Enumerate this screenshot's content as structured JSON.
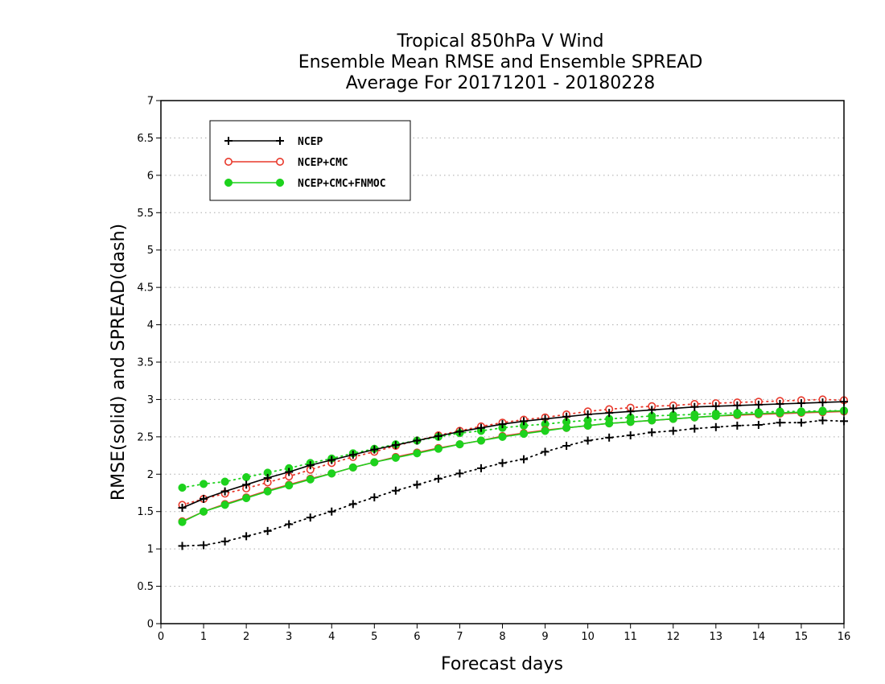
{
  "chart_data": {
    "type": "line",
    "title": [
      "Tropical 850hPa V Wind",
      "Ensemble Mean RMSE and Ensemble SPREAD",
      "Average For 20171201 - 20180228"
    ],
    "xlabel": "Forecast days",
    "ylabel": "RMSE(solid) and SPREAD(dash)",
    "xlim": [
      0,
      16
    ],
    "ylim": [
      0,
      7
    ],
    "xticks": [
      "0",
      "1",
      "2",
      "3",
      "4",
      "5",
      "6",
      "7",
      "8",
      "9",
      "10",
      "11",
      "12",
      "13",
      "14",
      "15",
      "16"
    ],
    "yticks": [
      "0",
      "0.5",
      "1",
      "1.5",
      "2",
      "2.5",
      "3",
      "3.5",
      "4",
      "4.5",
      "5",
      "5.5",
      "6",
      "6.5",
      "7"
    ],
    "grid": "horizontal-dotted",
    "legend_position": "top-left",
    "x": [
      0.5,
      1,
      1.5,
      2,
      2.5,
      3,
      3.5,
      4,
      4.5,
      5,
      5.5,
      6,
      6.5,
      7,
      7.5,
      8,
      8.5,
      9,
      9.5,
      10,
      10.5,
      11,
      11.5,
      12,
      12.5,
      13,
      13.5,
      14,
      14.5,
      15,
      15.5,
      16
    ],
    "series": [
      {
        "name": "NCEP",
        "metric": "RMSE",
        "style": "solid",
        "marker": "plus",
        "color": "#000000",
        "values": [
          1.55,
          1.67,
          1.77,
          1.86,
          1.95,
          2.03,
          2.12,
          2.19,
          2.26,
          2.33,
          2.39,
          2.45,
          2.51,
          2.57,
          2.62,
          2.67,
          2.71,
          2.74,
          2.77,
          2.8,
          2.82,
          2.84,
          2.86,
          2.88,
          2.9,
          2.91,
          2.92,
          2.93,
          2.94,
          2.95,
          2.96,
          2.97
        ]
      },
      {
        "name": "NCEP",
        "metric": "SPREAD",
        "style": "dotted",
        "marker": "plus",
        "color": "#000000",
        "values": [
          1.04,
          1.05,
          1.1,
          1.17,
          1.24,
          1.33,
          1.42,
          1.5,
          1.6,
          1.69,
          1.78,
          1.86,
          1.94,
          2.01,
          2.08,
          2.15,
          2.2,
          2.3,
          2.38,
          2.45,
          2.49,
          2.52,
          2.56,
          2.58,
          2.61,
          2.63,
          2.65,
          2.66,
          2.69,
          2.69,
          2.72,
          2.71
        ]
      },
      {
        "name": "NCEP+CMC",
        "metric": "RMSE",
        "style": "solid",
        "marker": "open-circle",
        "color": "#e8392c",
        "values": [
          1.37,
          1.5,
          1.6,
          1.69,
          1.78,
          1.86,
          1.94,
          2.01,
          2.09,
          2.16,
          2.23,
          2.29,
          2.35,
          2.4,
          2.45,
          2.51,
          2.55,
          2.59,
          2.62,
          2.65,
          2.68,
          2.7,
          2.72,
          2.74,
          2.76,
          2.78,
          2.79,
          2.8,
          2.81,
          2.82,
          2.83,
          2.84
        ]
      },
      {
        "name": "NCEP+CMC",
        "metric": "SPREAD",
        "style": "dotted",
        "marker": "open-circle",
        "color": "#e8392c",
        "values": [
          1.59,
          1.67,
          1.74,
          1.81,
          1.89,
          1.97,
          2.06,
          2.15,
          2.23,
          2.3,
          2.38,
          2.45,
          2.52,
          2.58,
          2.64,
          2.69,
          2.73,
          2.76,
          2.8,
          2.84,
          2.87,
          2.89,
          2.91,
          2.92,
          2.94,
          2.95,
          2.96,
          2.97,
          2.98,
          2.99,
          3.0,
          2.99
        ]
      },
      {
        "name": "NCEP+CMC+FNMOC",
        "metric": "RMSE",
        "style": "solid",
        "marker": "filled-circle",
        "color": "#1dd21d",
        "values": [
          1.36,
          1.5,
          1.59,
          1.68,
          1.77,
          1.85,
          1.93,
          2.01,
          2.09,
          2.16,
          2.22,
          2.28,
          2.34,
          2.4,
          2.45,
          2.5,
          2.54,
          2.58,
          2.62,
          2.65,
          2.68,
          2.7,
          2.72,
          2.74,
          2.76,
          2.78,
          2.8,
          2.81,
          2.82,
          2.83,
          2.84,
          2.85
        ]
      },
      {
        "name": "NCEP+CMC+FNMOC",
        "metric": "SPREAD",
        "style": "dotted",
        "marker": "filled-circle",
        "color": "#1dd21d",
        "values": [
          1.82,
          1.87,
          1.9,
          1.96,
          2.02,
          2.08,
          2.15,
          2.21,
          2.28,
          2.34,
          2.4,
          2.45,
          2.5,
          2.55,
          2.58,
          2.62,
          2.65,
          2.67,
          2.7,
          2.72,
          2.74,
          2.76,
          2.78,
          2.79,
          2.8,
          2.81,
          2.82,
          2.83,
          2.84,
          2.84,
          2.85,
          2.85
        ]
      }
    ],
    "legend": [
      {
        "label": "NCEP",
        "marker": "plus",
        "color": "#000000"
      },
      {
        "label": "NCEP+CMC",
        "marker": "open-circle",
        "color": "#e8392c"
      },
      {
        "label": "NCEP+CMC+FNMOC",
        "marker": "filled-circle",
        "color": "#1dd21d"
      }
    ]
  }
}
